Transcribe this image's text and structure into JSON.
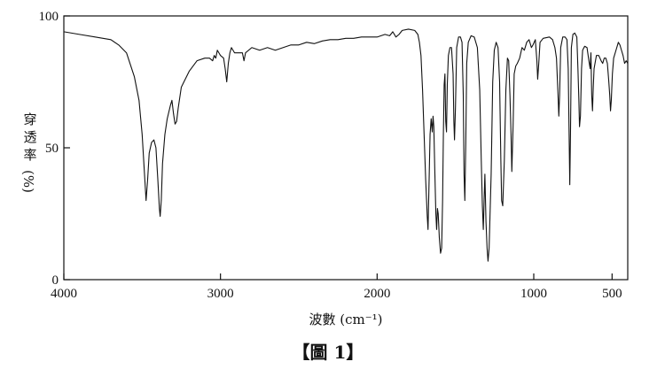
{
  "chart_data": {
    "type": "line",
    "title": "",
    "xlabel": "波數 (cm⁻¹)",
    "ylabel_chars": [
      "穿",
      "透",
      "率",
      "(%)"
    ],
    "caption": "【圖 1】",
    "xlim": [
      4000,
      400
    ],
    "ylim": [
      0,
      100
    ],
    "x_reversed": true,
    "grid": false,
    "x_ticks": [
      {
        "value": 4000,
        "label": "4000"
      },
      {
        "value": 3000,
        "label": "3000"
      },
      {
        "value": 2000,
        "label": "2000"
      },
      {
        "value": 1000,
        "label": "1000"
      },
      {
        "value": 500,
        "label": "500"
      }
    ],
    "y_ticks": [
      {
        "value": 0,
        "label": "0"
      },
      {
        "value": 50,
        "label": "50"
      },
      {
        "value": 100,
        "label": "100"
      }
    ],
    "series": [
      {
        "name": "",
        "color": "#111111",
        "points": [
          [
            4000,
            94
          ],
          [
            3950,
            93.5
          ],
          [
            3900,
            93
          ],
          [
            3800,
            92
          ],
          [
            3700,
            91
          ],
          [
            3650,
            89
          ],
          [
            3600,
            86
          ],
          [
            3550,
            77
          ],
          [
            3520,
            68
          ],
          [
            3500,
            55
          ],
          [
            3485,
            40
          ],
          [
            3475,
            30
          ],
          [
            3465,
            38
          ],
          [
            3455,
            48
          ],
          [
            3440,
            52
          ],
          [
            3425,
            53
          ],
          [
            3412,
            50
          ],
          [
            3400,
            38
          ],
          [
            3390,
            27
          ],
          [
            3385,
            24
          ],
          [
            3378,
            30
          ],
          [
            3370,
            44
          ],
          [
            3355,
            55
          ],
          [
            3340,
            61
          ],
          [
            3320,
            66
          ],
          [
            3310,
            68
          ],
          [
            3300,
            63
          ],
          [
            3290,
            59
          ],
          [
            3280,
            60
          ],
          [
            3270,
            65
          ],
          [
            3250,
            73
          ],
          [
            3200,
            79
          ],
          [
            3150,
            83
          ],
          [
            3100,
            84
          ],
          [
            3070,
            84
          ],
          [
            3050,
            83
          ],
          [
            3040,
            85
          ],
          [
            3030,
            84
          ],
          [
            3020,
            87
          ],
          [
            3010,
            86
          ],
          [
            3000,
            85
          ],
          [
            2980,
            84
          ],
          [
            2970,
            80
          ],
          [
            2960,
            75
          ],
          [
            2950,
            82
          ],
          [
            2940,
            86
          ],
          [
            2930,
            88
          ],
          [
            2920,
            87
          ],
          [
            2910,
            86
          ],
          [
            2900,
            86
          ],
          [
            2880,
            86
          ],
          [
            2860,
            86
          ],
          [
            2850,
            83
          ],
          [
            2840,
            86
          ],
          [
            2800,
            88
          ],
          [
            2750,
            87
          ],
          [
            2700,
            88
          ],
          [
            2650,
            87
          ],
          [
            2600,
            88
          ],
          [
            2550,
            89
          ],
          [
            2500,
            89
          ],
          [
            2450,
            90
          ],
          [
            2400,
            89.5
          ],
          [
            2350,
            90.5
          ],
          [
            2300,
            91
          ],
          [
            2250,
            91
          ],
          [
            2200,
            91.5
          ],
          [
            2150,
            91.5
          ],
          [
            2100,
            92
          ],
          [
            2050,
            92
          ],
          [
            2000,
            92
          ],
          [
            1950,
            93
          ],
          [
            1920,
            92.5
          ],
          [
            1900,
            94
          ],
          [
            1880,
            92
          ],
          [
            1860,
            93
          ],
          [
            1840,
            94.5
          ],
          [
            1800,
            95
          ],
          [
            1760,
            94.5
          ],
          [
            1740,
            93
          ],
          [
            1730,
            90
          ],
          [
            1720,
            85
          ],
          [
            1710,
            72
          ],
          [
            1700,
            55
          ],
          [
            1690,
            38
          ],
          [
            1680,
            24
          ],
          [
            1675,
            19
          ],
          [
            1668,
            38
          ],
          [
            1662,
            55
          ],
          [
            1655,
            61
          ],
          [
            1648,
            56
          ],
          [
            1643,
            62
          ],
          [
            1638,
            58
          ],
          [
            1632,
            42
          ],
          [
            1625,
            25
          ],
          [
            1620,
            19
          ],
          [
            1615,
            27
          ],
          [
            1610,
            25
          ],
          [
            1603,
            16
          ],
          [
            1595,
            10
          ],
          [
            1588,
            12
          ],
          [
            1582,
            30
          ],
          [
            1577,
            55
          ],
          [
            1572,
            74
          ],
          [
            1567,
            78
          ],
          [
            1562,
            60
          ],
          [
            1557,
            56
          ],
          [
            1552,
            74
          ],
          [
            1545,
            85
          ],
          [
            1535,
            88
          ],
          [
            1525,
            88
          ],
          [
            1515,
            78
          ],
          [
            1510,
            60
          ],
          [
            1506,
            53
          ],
          [
            1500,
            65
          ],
          [
            1492,
            88
          ],
          [
            1480,
            92
          ],
          [
            1468,
            92
          ],
          [
            1458,
            90
          ],
          [
            1450,
            70
          ],
          [
            1445,
            40
          ],
          [
            1440,
            30
          ],
          [
            1434,
            52
          ],
          [
            1428,
            82
          ],
          [
            1418,
            90
          ],
          [
            1400,
            92.5
          ],
          [
            1380,
            92
          ],
          [
            1360,
            88
          ],
          [
            1345,
            72
          ],
          [
            1335,
            45
          ],
          [
            1328,
            28
          ],
          [
            1322,
            19
          ],
          [
            1316,
            32
          ],
          [
            1312,
            40
          ],
          [
            1305,
            22
          ],
          [
            1298,
            12
          ],
          [
            1292,
            7
          ],
          [
            1285,
            12
          ],
          [
            1272,
            40
          ],
          [
            1262,
            75
          ],
          [
            1252,
            87
          ],
          [
            1240,
            90
          ],
          [
            1228,
            88
          ],
          [
            1218,
            75
          ],
          [
            1210,
            45
          ],
          [
            1205,
            30
          ],
          [
            1198,
            28
          ],
          [
            1188,
            45
          ],
          [
            1178,
            72
          ],
          [
            1168,
            84
          ],
          [
            1160,
            83
          ],
          [
            1152,
            70
          ],
          [
            1145,
            55
          ],
          [
            1140,
            41
          ],
          [
            1132,
            58
          ],
          [
            1125,
            78
          ],
          [
            1115,
            81
          ],
          [
            1105,
            82
          ],
          [
            1090,
            84
          ],
          [
            1075,
            88
          ],
          [
            1060,
            87
          ],
          [
            1045,
            90
          ],
          [
            1030,
            91
          ],
          [
            1015,
            88
          ],
          [
            1005,
            89
          ],
          [
            990,
            91
          ],
          [
            980,
            83
          ],
          [
            975,
            76
          ],
          [
            968,
            82
          ],
          [
            960,
            90
          ],
          [
            940,
            91.5
          ],
          [
            900,
            92
          ],
          [
            880,
            91
          ],
          [
            865,
            88
          ],
          [
            855,
            84
          ],
          [
            845,
            70
          ],
          [
            840,
            62
          ],
          [
            835,
            70
          ],
          [
            828,
            88
          ],
          [
            815,
            92
          ],
          [
            800,
            92
          ],
          [
            788,
            91
          ],
          [
            780,
            80
          ],
          [
            775,
            58
          ],
          [
            770,
            36
          ],
          [
            765,
            58
          ],
          [
            760,
            88
          ],
          [
            750,
            93
          ],
          [
            738,
            93.5
          ],
          [
            725,
            92
          ],
          [
            718,
            80
          ],
          [
            712,
            68
          ],
          [
            708,
            58
          ],
          [
            702,
            62
          ],
          [
            695,
            80
          ],
          [
            688,
            87
          ],
          [
            675,
            88.5
          ],
          [
            660,
            88
          ],
          [
            648,
            83
          ],
          [
            640,
            80
          ],
          [
            635,
            86
          ],
          [
            630,
            70
          ],
          [
            625,
            64
          ],
          [
            620,
            73
          ],
          [
            615,
            80
          ],
          [
            600,
            85
          ],
          [
            585,
            85
          ],
          [
            570,
            83
          ],
          [
            560,
            82
          ],
          [
            550,
            84
          ],
          [
            540,
            84
          ],
          [
            530,
            82
          ],
          [
            522,
            76
          ],
          [
            515,
            70
          ],
          [
            510,
            64
          ],
          [
            505,
            68
          ],
          [
            498,
            78
          ],
          [
            490,
            84
          ],
          [
            475,
            87
          ],
          [
            460,
            90
          ],
          [
            450,
            89
          ],
          [
            440,
            87
          ],
          [
            430,
            85
          ],
          [
            420,
            82
          ],
          [
            410,
            83
          ],
          [
            400,
            82
          ]
        ]
      }
    ]
  }
}
